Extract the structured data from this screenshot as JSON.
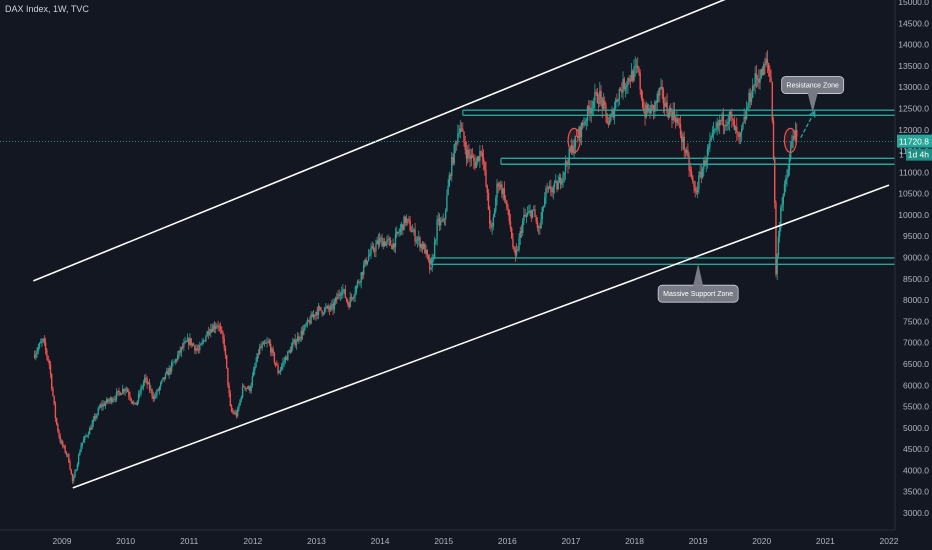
{
  "header": {
    "title": "DAX Index, 1W, TVC"
  },
  "chart_data": {
    "type": "candlestick",
    "title": "DAX Index, 1W, TVC",
    "symbol": "DAX Index",
    "interval": "1W",
    "source": "TVC",
    "x_ticks": [
      "2009",
      "2010",
      "2011",
      "2012",
      "2013",
      "2014",
      "2015",
      "2016",
      "2017",
      "2018",
      "2019",
      "2020",
      "2021",
      "2022"
    ],
    "y_ticks": [
      "15000.0",
      "14500.0",
      "14000.0",
      "13500.0",
      "13000.0",
      "12500.0",
      "12000.0",
      "11500.0",
      "11000.0",
      "10500.0",
      "10000.0",
      "9500.0",
      "9000.0",
      "8500.0",
      "8000.0",
      "7500.0",
      "7000.0",
      "6500.0",
      "6000.0",
      "5500.0",
      "5000.0",
      "4500.0",
      "4000.0",
      "3500.0",
      "3000.0"
    ],
    "ylim": [
      2800,
      15200
    ],
    "xlim": [
      2008.55,
      2022.0
    ],
    "price_path": [
      [
        2008.55,
        6700
      ],
      [
        2008.7,
        7050
      ],
      [
        2008.8,
        6500
      ],
      [
        2008.9,
        5200
      ],
      [
        2008.97,
        4700
      ],
      [
        2009.1,
        4300
      ],
      [
        2009.17,
        3700
      ],
      [
        2009.3,
        4600
      ],
      [
        2009.45,
        5000
      ],
      [
        2009.6,
        5500
      ],
      [
        2009.8,
        5700
      ],
      [
        2010.0,
        5950
      ],
      [
        2010.15,
        5500
      ],
      [
        2010.3,
        6150
      ],
      [
        2010.45,
        5700
      ],
      [
        2010.6,
        6150
      ],
      [
        2010.75,
        6500
      ],
      [
        2010.9,
        6900
      ],
      [
        2011.0,
        7050
      ],
      [
        2011.15,
        6800
      ],
      [
        2011.3,
        7300
      ],
      [
        2011.45,
        7450
      ],
      [
        2011.55,
        6950
      ],
      [
        2011.65,
        5400
      ],
      [
        2011.75,
        5300
      ],
      [
        2011.85,
        6000
      ],
      [
        2011.95,
        5900
      ],
      [
        2012.1,
        6850
      ],
      [
        2012.25,
        7000
      ],
      [
        2012.4,
        6300
      ],
      [
        2012.5,
        6600
      ],
      [
        2012.65,
        7000
      ],
      [
        2012.8,
        7300
      ],
      [
        2013.0,
        7750
      ],
      [
        2013.25,
        7800
      ],
      [
        2013.4,
        8300
      ],
      [
        2013.5,
        7900
      ],
      [
        2013.65,
        8400
      ],
      [
        2013.8,
        9000
      ],
      [
        2014.0,
        9400
      ],
      [
        2014.2,
        9300
      ],
      [
        2014.4,
        9900
      ],
      [
        2014.55,
        9500
      ],
      [
        2014.7,
        9200
      ],
      [
        2014.8,
        8650
      ],
      [
        2014.9,
        9800
      ],
      [
        2015.0,
        9800
      ],
      [
        2015.1,
        11000
      ],
      [
        2015.25,
        12150
      ],
      [
        2015.35,
        11500
      ],
      [
        2015.5,
        11200
      ],
      [
        2015.6,
        11600
      ],
      [
        2015.7,
        10200
      ],
      [
        2015.75,
        9500
      ],
      [
        2015.85,
        10800
      ],
      [
        2015.95,
        10500
      ],
      [
        2016.05,
        9700
      ],
      [
        2016.12,
        8900
      ],
      [
        2016.25,
        9900
      ],
      [
        2016.4,
        10100
      ],
      [
        2016.5,
        9600
      ],
      [
        2016.6,
        10500
      ],
      [
        2016.8,
        10700
      ],
      [
        2017.0,
        11500
      ],
      [
        2017.15,
        12000
      ],
      [
        2017.35,
        12700
      ],
      [
        2017.45,
        12800
      ],
      [
        2017.6,
        12100
      ],
      [
        2017.75,
        12900
      ],
      [
        2017.9,
        13200
      ],
      [
        2018.05,
        13400
      ],
      [
        2018.15,
        12400
      ],
      [
        2018.3,
        12500
      ],
      [
        2018.4,
        12900
      ],
      [
        2018.5,
        12500
      ],
      [
        2018.65,
        12300
      ],
      [
        2018.8,
        11500
      ],
      [
        2018.95,
        10500
      ],
      [
        2019.05,
        11000
      ],
      [
        2019.2,
        11700
      ],
      [
        2019.35,
        12200
      ],
      [
        2019.5,
        12300
      ],
      [
        2019.65,
        11700
      ],
      [
        2019.8,
        12700
      ],
      [
        2019.9,
        13200
      ],
      [
        2020.0,
        13300
      ],
      [
        2020.08,
        13600
      ],
      [
        2020.15,
        13100
      ],
      [
        2020.2,
        10600
      ],
      [
        2020.22,
        8600
      ],
      [
        2020.3,
        10200
      ],
      [
        2020.4,
        10900
      ],
      [
        2020.5,
        12000
      ],
      [
        2020.55,
        11720.8
      ]
    ],
    "trend_lines": [
      {
        "name": "upper-channel",
        "points": [
          [
            2008.55,
            8450
          ],
          [
            2019.98,
            15400
          ]
        ]
      },
      {
        "name": "lower-channel",
        "points": [
          [
            2009.17,
            3590
          ],
          [
            2022.0,
            10700
          ]
        ]
      }
    ],
    "horizontal_zones": [
      {
        "name": "resistance-zone",
        "prices": [
          12460,
          12340
        ],
        "x_start": 2015.3
      },
      {
        "name": "mid-support-zone",
        "prices": [
          11330,
          11190
        ],
        "x_start": 2015.9
      },
      {
        "name": "massive-support-zone",
        "prices": [
          8990,
          8840
        ],
        "x_start": 2014.8
      }
    ],
    "annotations": [
      {
        "text": "Resistance Zone",
        "x": 2020.8,
        "y": 13050,
        "pointer_to": [
          2020.8,
          12400
        ]
      },
      {
        "text": "Massive Support Zone",
        "x": 2019.0,
        "y": 8150,
        "pointer_to": [
          2019.0,
          8850
        ]
      }
    ],
    "highlight_ellipses": [
      [
        2017.05,
        11750
      ],
      [
        2020.45,
        11750
      ]
    ],
    "projection_arrow": {
      "from": [
        2020.55,
        11720
      ],
      "to": [
        2020.8,
        12430
      ]
    },
    "current_price": {
      "value": 11720.8,
      "label": "11720.8",
      "countdown": "1d 4h",
      "marker": "1"
    },
    "colors": {
      "background": "#131722",
      "up": "#26a69a",
      "down": "#ef5350",
      "zone": "#26a69a",
      "trend": "#ffffff",
      "arrow": "#26a69a",
      "ellipse": "#ef5350",
      "callout": "#787b86",
      "price_badge": "#26a69a",
      "countdown_badge": "#1e8f84"
    }
  }
}
